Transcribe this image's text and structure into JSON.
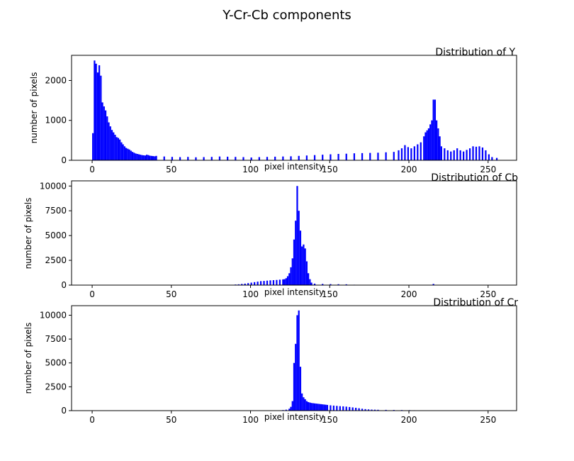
{
  "suptitle": "Y-Cr-Cb components",
  "chart_data": [
    {
      "type": "bar",
      "title": "Distribution of Y",
      "xlabel": "pixel intensity",
      "ylabel": "number of pixels",
      "xlim": [
        -13,
        268
      ],
      "ylim": [
        0,
        2630
      ],
      "xticks": [
        0,
        50,
        100,
        150,
        200,
        250
      ],
      "yticks": [
        0,
        1000,
        2000
      ],
      "color": "#0000ff",
      "bin_width": 1,
      "points": [
        [
          0,
          680
        ],
        [
          1,
          2500
        ],
        [
          2,
          2420
        ],
        [
          3,
          2200
        ],
        [
          4,
          2380
        ],
        [
          5,
          2120
        ],
        [
          6,
          1450
        ],
        [
          7,
          1350
        ],
        [
          8,
          1250
        ],
        [
          9,
          1100
        ],
        [
          10,
          950
        ],
        [
          11,
          850
        ],
        [
          12,
          760
        ],
        [
          13,
          700
        ],
        [
          14,
          640
        ],
        [
          15,
          580
        ],
        [
          16,
          560
        ],
        [
          17,
          520
        ],
        [
          18,
          450
        ],
        [
          19,
          400
        ],
        [
          20,
          350
        ],
        [
          21,
          310
        ],
        [
          22,
          290
        ],
        [
          23,
          270
        ],
        [
          24,
          240
        ],
        [
          25,
          210
        ],
        [
          26,
          190
        ],
        [
          27,
          170
        ],
        [
          28,
          160
        ],
        [
          29,
          150
        ],
        [
          30,
          140
        ],
        [
          31,
          130
        ],
        [
          32,
          125
        ],
        [
          33,
          120
        ],
        [
          34,
          140
        ],
        [
          35,
          130
        ],
        [
          36,
          115
        ],
        [
          37,
          110
        ],
        [
          38,
          105
        ],
        [
          39,
          100
        ],
        [
          40,
          110
        ],
        [
          45,
          95
        ],
        [
          50,
          85
        ],
        [
          55,
          80
        ],
        [
          60,
          85
        ],
        [
          65,
          75
        ],
        [
          70,
          80
        ],
        [
          75,
          85
        ],
        [
          80,
          95
        ],
        [
          85,
          90
        ],
        [
          90,
          85
        ],
        [
          95,
          80
        ],
        [
          100,
          70
        ],
        [
          105,
          80
        ],
        [
          110,
          85
        ],
        [
          115,
          90
        ],
        [
          120,
          95
        ],
        [
          125,
          100
        ],
        [
          130,
          110
        ],
        [
          135,
          120
        ],
        [
          140,
          130
        ],
        [
          145,
          140
        ],
        [
          150,
          150
        ],
        [
          155,
          160
        ],
        [
          160,
          165
        ],
        [
          165,
          175
        ],
        [
          170,
          180
        ],
        [
          175,
          185
        ],
        [
          180,
          190
        ],
        [
          185,
          200
        ],
        [
          190,
          210
        ],
        [
          193,
          250
        ],
        [
          195,
          300
        ],
        [
          197,
          380
        ],
        [
          199,
          330
        ],
        [
          201,
          300
        ],
        [
          203,
          350
        ],
        [
          205,
          400
        ],
        [
          207,
          450
        ],
        [
          209,
          600
        ],
        [
          210,
          700
        ],
        [
          211,
          750
        ],
        [
          212,
          800
        ],
        [
          213,
          900
        ],
        [
          214,
          1000
        ],
        [
          215,
          1520
        ],
        [
          216,
          1520
        ],
        [
          217,
          1000
        ],
        [
          218,
          800
        ],
        [
          219,
          600
        ],
        [
          220,
          350
        ],
        [
          222,
          300
        ],
        [
          224,
          250
        ],
        [
          226,
          220
        ],
        [
          228,
          250
        ],
        [
          230,
          300
        ],
        [
          232,
          250
        ],
        [
          234,
          220
        ],
        [
          236,
          260
        ],
        [
          238,
          300
        ],
        [
          240,
          350
        ],
        [
          242,
          340
        ],
        [
          244,
          350
        ],
        [
          246,
          320
        ],
        [
          248,
          250
        ],
        [
          250,
          150
        ],
        [
          252,
          80
        ],
        [
          255,
          60
        ]
      ]
    },
    {
      "type": "bar",
      "title": "Distribution of Cb",
      "xlabel": "pixel intensity",
      "ylabel": "number of pixels",
      "xlim": [
        -13,
        268
      ],
      "ylim": [
        0,
        10520
      ],
      "xticks": [
        0,
        50,
        100,
        150,
        200,
        250
      ],
      "yticks": [
        0,
        2500,
        5000,
        7500,
        10000
      ],
      "color": "#0000ff",
      "bin_width": 1,
      "points": [
        [
          90,
          60
        ],
        [
          92,
          80
        ],
        [
          94,
          120
        ],
        [
          96,
          150
        ],
        [
          98,
          200
        ],
        [
          100,
          250
        ],
        [
          102,
          300
        ],
        [
          104,
          350
        ],
        [
          106,
          400
        ],
        [
          108,
          420
        ],
        [
          110,
          450
        ],
        [
          112,
          480
        ],
        [
          114,
          500
        ],
        [
          116,
          520
        ],
        [
          118,
          550
        ],
        [
          120,
          580
        ],
        [
          121,
          600
        ],
        [
          122,
          700
        ],
        [
          123,
          900
        ],
        [
          124,
          1200
        ],
        [
          125,
          1800
        ],
        [
          126,
          2700
        ],
        [
          127,
          4600
        ],
        [
          128,
          6500
        ],
        [
          129,
          10000
        ],
        [
          130,
          7500
        ],
        [
          131,
          5500
        ],
        [
          132,
          3900
        ],
        [
          133,
          4100
        ],
        [
          134,
          3700
        ],
        [
          135,
          2400
        ],
        [
          136,
          1200
        ],
        [
          137,
          600
        ],
        [
          138,
          250
        ],
        [
          140,
          150
        ],
        [
          145,
          120
        ],
        [
          150,
          100
        ],
        [
          155,
          90
        ],
        [
          160,
          80
        ],
        [
          165,
          40
        ],
        [
          215,
          120
        ]
      ]
    },
    {
      "type": "bar",
      "title": "Distribution of Cr",
      "xlabel": "pixel intensity",
      "ylabel": "number of pixels",
      "xlim": [
        -13,
        268
      ],
      "ylim": [
        0,
        11000
      ],
      "xticks": [
        0,
        50,
        100,
        150,
        200,
        250
      ],
      "yticks": [
        0,
        2500,
        5000,
        7500,
        10000
      ],
      "color": "#0000ff",
      "bin_width": 1,
      "points": [
        [
          120,
          60
        ],
        [
          122,
          100
        ],
        [
          124,
          200
        ],
        [
          125,
          400
        ],
        [
          126,
          1000
        ],
        [
          127,
          5000
        ],
        [
          128,
          7000
        ],
        [
          129,
          10000
        ],
        [
          130,
          10500
        ],
        [
          131,
          4600
        ],
        [
          132,
          1800
        ],
        [
          133,
          1400
        ],
        [
          134,
          1200
        ],
        [
          135,
          1000
        ],
        [
          136,
          900
        ],
        [
          137,
          850
        ],
        [
          138,
          800
        ],
        [
          139,
          780
        ],
        [
          140,
          760
        ],
        [
          141,
          740
        ],
        [
          142,
          720
        ],
        [
          143,
          700
        ],
        [
          144,
          680
        ],
        [
          145,
          660
        ],
        [
          146,
          640
        ],
        [
          147,
          620
        ],
        [
          148,
          600
        ],
        [
          150,
          560
        ],
        [
          152,
          530
        ],
        [
          154,
          500
        ],
        [
          156,
          470
        ],
        [
          158,
          450
        ],
        [
          160,
          420
        ],
        [
          162,
          380
        ],
        [
          164,
          340
        ],
        [
          166,
          300
        ],
        [
          168,
          250
        ],
        [
          170,
          200
        ],
        [
          172,
          160
        ],
        [
          174,
          130
        ],
        [
          176,
          110
        ],
        [
          178,
          100
        ],
        [
          180,
          90
        ],
        [
          185,
          80
        ],
        [
          190,
          70
        ],
        [
          195,
          60
        ],
        [
          200,
          50
        ],
        [
          203,
          40
        ]
      ]
    }
  ]
}
